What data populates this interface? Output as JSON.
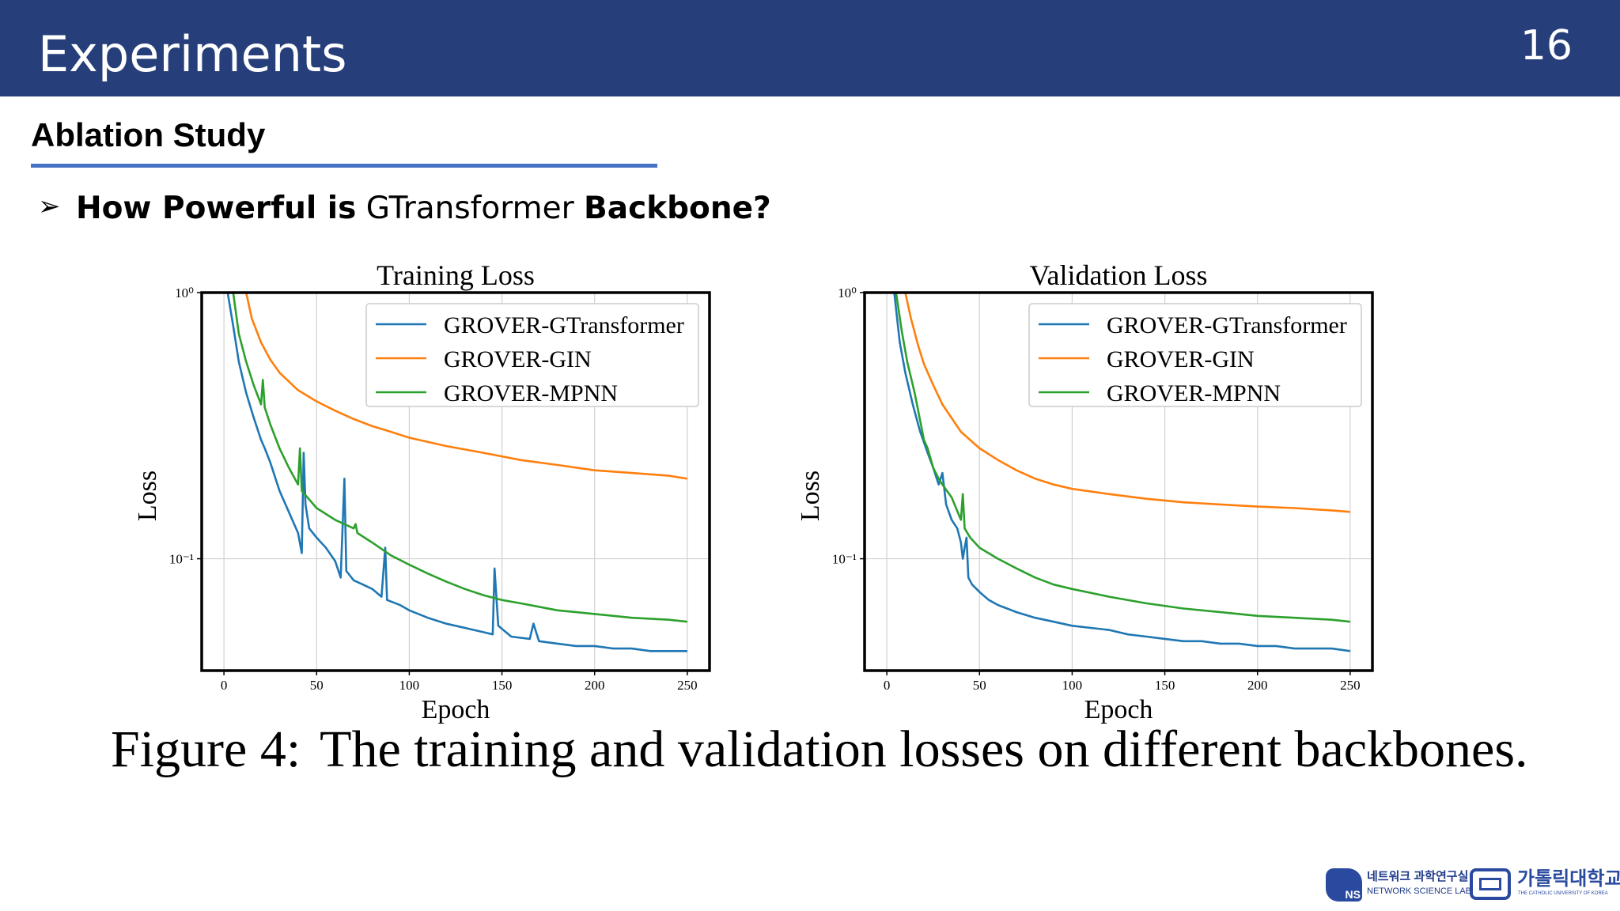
{
  "header": {
    "title": "Experiments",
    "page_number": "16"
  },
  "section": {
    "title": "Ablation Study"
  },
  "bullet": {
    "arrow": "➢",
    "part1": "How Powerful is",
    "part2": " GTransformer ",
    "part3": "Backbone?"
  },
  "caption": {
    "label": "Figure 4:",
    "text": "The training and validation losses on different backbones."
  },
  "logos": {
    "ns_badge": "NS",
    "ns_korean": "네트워크 과학연구실",
    "ns_english": "NETWORK SCIENCE LAB",
    "cuk_korean": "가톨릭대학교",
    "cuk_english": "THE CATHOLIC UNIVERSITY OF KOREA"
  },
  "colors": {
    "header_bg": "#263f7a",
    "underline": "#4472c4",
    "gtransformer": "#1f77b4",
    "gin": "#ff7f0e",
    "mpnn": "#2ca02c"
  },
  "chart_data": [
    {
      "type": "line",
      "title": "Training Loss",
      "xlabel": "Epoch",
      "ylabel": "Loss",
      "yscale": "log",
      "xlim": [
        -12,
        262
      ],
      "ylim": [
        0.038,
        1.0
      ],
      "xticks": [
        0,
        50,
        100,
        150,
        200,
        250
      ],
      "yticks": [
        {
          "value": 1.0,
          "label": "10⁰"
        },
        {
          "value": 0.1,
          "label": "10⁻¹"
        }
      ],
      "grid": true,
      "legend_position": "top-right",
      "series": [
        {
          "name": "GROVER-GTransformer",
          "color": "#1f77b4",
          "points": [
            [
              2,
              1.0
            ],
            [
              5,
              0.75
            ],
            [
              8,
              0.55
            ],
            [
              12,
              0.42
            ],
            [
              16,
              0.34
            ],
            [
              20,
              0.28
            ],
            [
              22,
              0.26
            ],
            [
              25,
              0.23
            ],
            [
              30,
              0.18
            ],
            [
              35,
              0.15
            ],
            [
              40,
              0.125
            ],
            [
              42,
              0.105
            ],
            [
              43,
              0.25
            ],
            [
              44,
              0.16
            ],
            [
              46,
              0.13
            ],
            [
              50,
              0.12
            ],
            [
              55,
              0.11
            ],
            [
              60,
              0.098
            ],
            [
              63,
              0.085
            ],
            [
              65,
              0.2
            ],
            [
              66,
              0.09
            ],
            [
              70,
              0.083
            ],
            [
              75,
              0.08
            ],
            [
              80,
              0.077
            ],
            [
              85,
              0.072
            ],
            [
              87,
              0.11
            ],
            [
              88,
              0.07
            ],
            [
              95,
              0.067
            ],
            [
              100,
              0.064
            ],
            [
              110,
              0.06
            ],
            [
              120,
              0.057
            ],
            [
              130,
              0.055
            ],
            [
              140,
              0.053
            ],
            [
              145,
              0.052
            ],
            [
              146,
              0.092
            ],
            [
              148,
              0.056
            ],
            [
              155,
              0.051
            ],
            [
              165,
              0.05
            ],
            [
              167,
              0.057
            ],
            [
              170,
              0.049
            ],
            [
              180,
              0.048
            ],
            [
              190,
              0.047
            ],
            [
              200,
              0.047
            ],
            [
              210,
              0.046
            ],
            [
              220,
              0.046
            ],
            [
              230,
              0.045
            ],
            [
              240,
              0.045
            ],
            [
              250,
              0.045
            ]
          ]
        },
        {
          "name": "GROVER-GIN",
          "color": "#ff7f0e",
          "points": [
            [
              12,
              1.0
            ],
            [
              15,
              0.8
            ],
            [
              20,
              0.65
            ],
            [
              25,
              0.56
            ],
            [
              30,
              0.5
            ],
            [
              40,
              0.43
            ],
            [
              50,
              0.39
            ],
            [
              60,
              0.36
            ],
            [
              70,
              0.335
            ],
            [
              80,
              0.315
            ],
            [
              90,
              0.3
            ],
            [
              100,
              0.285
            ],
            [
              120,
              0.265
            ],
            [
              140,
              0.25
            ],
            [
              160,
              0.235
            ],
            [
              180,
              0.225
            ],
            [
              200,
              0.215
            ],
            [
              220,
              0.21
            ],
            [
              240,
              0.205
            ],
            [
              250,
              0.2
            ]
          ]
        },
        {
          "name": "GROVER-MPNN",
          "color": "#2ca02c",
          "points": [
            [
              5,
              1.0
            ],
            [
              8,
              0.7
            ],
            [
              12,
              0.55
            ],
            [
              16,
              0.45
            ],
            [
              20,
              0.38
            ],
            [
              21,
              0.47
            ],
            [
              22,
              0.37
            ],
            [
              25,
              0.32
            ],
            [
              30,
              0.26
            ],
            [
              35,
              0.22
            ],
            [
              40,
              0.19
            ],
            [
              41,
              0.26
            ],
            [
              42,
              0.18
            ],
            [
              50,
              0.155
            ],
            [
              60,
              0.14
            ],
            [
              70,
              0.13
            ],
            [
              71,
              0.135
            ],
            [
              72,
              0.125
            ],
            [
              80,
              0.115
            ],
            [
              90,
              0.103
            ],
            [
              100,
              0.095
            ],
            [
              110,
              0.088
            ],
            [
              120,
              0.082
            ],
            [
              130,
              0.077
            ],
            [
              140,
              0.073
            ],
            [
              150,
              0.07
            ],
            [
              160,
              0.068
            ],
            [
              170,
              0.066
            ],
            [
              180,
              0.064
            ],
            [
              190,
              0.063
            ],
            [
              200,
              0.062
            ],
            [
              220,
              0.06
            ],
            [
              240,
              0.059
            ],
            [
              250,
              0.058
            ]
          ]
        }
      ]
    },
    {
      "type": "line",
      "title": "Validation Loss",
      "xlabel": "Epoch",
      "ylabel": "Loss",
      "yscale": "log",
      "xlim": [
        -12,
        262
      ],
      "ylim": [
        0.038,
        1.0
      ],
      "xticks": [
        0,
        50,
        100,
        150,
        200,
        250
      ],
      "yticks": [
        {
          "value": 1.0,
          "label": "10⁰"
        },
        {
          "value": 0.1,
          "label": "10⁻¹"
        }
      ],
      "grid": true,
      "legend_position": "top-right",
      "series": [
        {
          "name": "GROVER-GTransformer",
          "color": "#1f77b4",
          "points": [
            [
              4,
              1.0
            ],
            [
              7,
              0.65
            ],
            [
              10,
              0.5
            ],
            [
              14,
              0.38
            ],
            [
              18,
              0.3
            ],
            [
              22,
              0.25
            ],
            [
              25,
              0.22
            ],
            [
              28,
              0.19
            ],
            [
              30,
              0.21
            ],
            [
              32,
              0.16
            ],
            [
              35,
              0.14
            ],
            [
              38,
              0.13
            ],
            [
              40,
              0.115
            ],
            [
              41,
              0.1
            ],
            [
              42,
              0.11
            ],
            [
              43,
              0.12
            ],
            [
              44,
              0.085
            ],
            [
              46,
              0.08
            ],
            [
              50,
              0.075
            ],
            [
              55,
              0.07
            ],
            [
              60,
              0.067
            ],
            [
              70,
              0.063
            ],
            [
              80,
              0.06
            ],
            [
              90,
              0.058
            ],
            [
              100,
              0.056
            ],
            [
              110,
              0.055
            ],
            [
              120,
              0.054
            ],
            [
              130,
              0.052
            ],
            [
              140,
              0.051
            ],
            [
              150,
              0.05
            ],
            [
              160,
              0.049
            ],
            [
              170,
              0.049
            ],
            [
              180,
              0.048
            ],
            [
              190,
              0.048
            ],
            [
              200,
              0.047
            ],
            [
              210,
              0.047
            ],
            [
              220,
              0.046
            ],
            [
              230,
              0.046
            ],
            [
              240,
              0.046
            ],
            [
              250,
              0.045
            ]
          ]
        },
        {
          "name": "GROVER-GIN",
          "color": "#ff7f0e",
          "points": [
            [
              10,
              1.0
            ],
            [
              13,
              0.8
            ],
            [
              17,
              0.63
            ],
            [
              20,
              0.54
            ],
            [
              25,
              0.45
            ],
            [
              30,
              0.38
            ],
            [
              40,
              0.3
            ],
            [
              50,
              0.26
            ],
            [
              60,
              0.235
            ],
            [
              70,
              0.215
            ],
            [
              80,
              0.2
            ],
            [
              90,
              0.19
            ],
            [
              100,
              0.183
            ],
            [
              120,
              0.175
            ],
            [
              140,
              0.168
            ],
            [
              160,
              0.163
            ],
            [
              180,
              0.16
            ],
            [
              200,
              0.157
            ],
            [
              220,
              0.155
            ],
            [
              240,
              0.152
            ],
            [
              250,
              0.15
            ]
          ]
        },
        {
          "name": "GROVER-MPNN",
          "color": "#2ca02c",
          "points": [
            [
              5,
              1.0
            ],
            [
              8,
              0.72
            ],
            [
              11,
              0.55
            ],
            [
              15,
              0.42
            ],
            [
              18,
              0.33
            ],
            [
              20,
              0.28
            ],
            [
              22,
              0.26
            ],
            [
              25,
              0.22
            ],
            [
              28,
              0.2
            ],
            [
              30,
              0.19
            ],
            [
              35,
              0.17
            ],
            [
              40,
              0.14
            ],
            [
              41,
              0.175
            ],
            [
              42,
              0.13
            ],
            [
              45,
              0.12
            ],
            [
              50,
              0.11
            ],
            [
              60,
              0.1
            ],
            [
              70,
              0.092
            ],
            [
              80,
              0.085
            ],
            [
              90,
              0.08
            ],
            [
              100,
              0.077
            ],
            [
              120,
              0.072
            ],
            [
              140,
              0.068
            ],
            [
              160,
              0.065
            ],
            [
              180,
              0.063
            ],
            [
              200,
              0.061
            ],
            [
              220,
              0.06
            ],
            [
              240,
              0.059
            ],
            [
              250,
              0.058
            ]
          ]
        }
      ]
    }
  ]
}
